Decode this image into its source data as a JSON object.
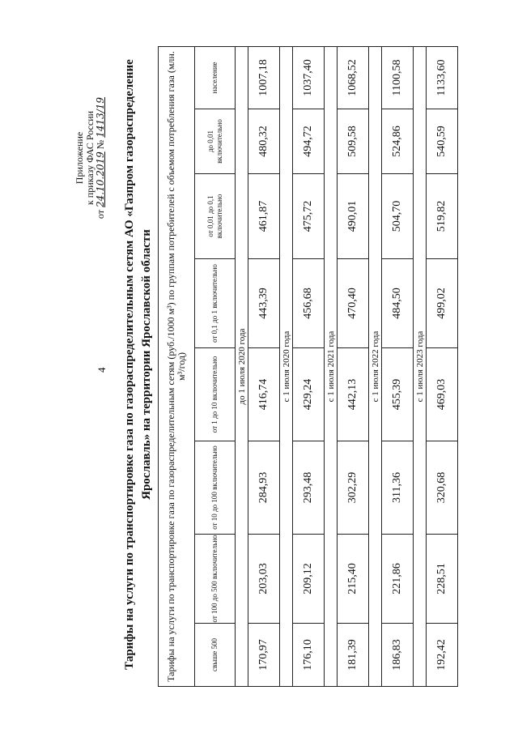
{
  "page_number": "4",
  "annex": {
    "line1": "Приложение",
    "line2": "к приказу ФАС России",
    "date_prefix": "от",
    "date": "24.10.2019",
    "number_prefix": "№",
    "number": "1413/19"
  },
  "title": "Тарифы на услуги по транспортировке газа по газораспределительным сетям АО «Газпром газораспределение Ярославль» на территории Ярославской области",
  "table": {
    "header": "Тарифы на услуги по транспортировке газа по газораспределительным сетям (руб./1000 м³) по группам потребителей с объемом потребления газа (млн. м³/год)",
    "columns": [
      "свыше 500",
      "от 100 до 500 включительно",
      "от 10 до 100 включительно",
      "от 1 до 10 включительно",
      "от 0,1 до 1 включительно",
      "от 0,01 до 0,1 включительно",
      "до 0,01 включительно",
      "население"
    ],
    "periods": [
      {
        "label": "до 1 июля 2020 года",
        "values": [
          "170,97",
          "203,03",
          "284,93",
          "416,74",
          "443,39",
          "461,87",
          "480,32",
          "1007,18"
        ]
      },
      {
        "label": "с 1 июля 2020 года",
        "values": [
          "176,10",
          "209,12",
          "293,48",
          "429,24",
          "456,68",
          "475,72",
          "494,72",
          "1037,40"
        ]
      },
      {
        "label": "с 1 июля 2021 года",
        "values": [
          "181,39",
          "215,40",
          "302,29",
          "442,13",
          "470,40",
          "490,01",
          "509,58",
          "1068,52"
        ]
      },
      {
        "label": "с 1 июля 2022 года",
        "values": [
          "186,83",
          "221,86",
          "311,36",
          "455,39",
          "484,50",
          "504,70",
          "524,86",
          "1100,58"
        ]
      },
      {
        "label": "с 1 июля 2023 года",
        "values": [
          "192,42",
          "228,51",
          "320,68",
          "469,03",
          "499,02",
          "519,82",
          "540,59",
          "1133,60"
        ]
      }
    ]
  }
}
